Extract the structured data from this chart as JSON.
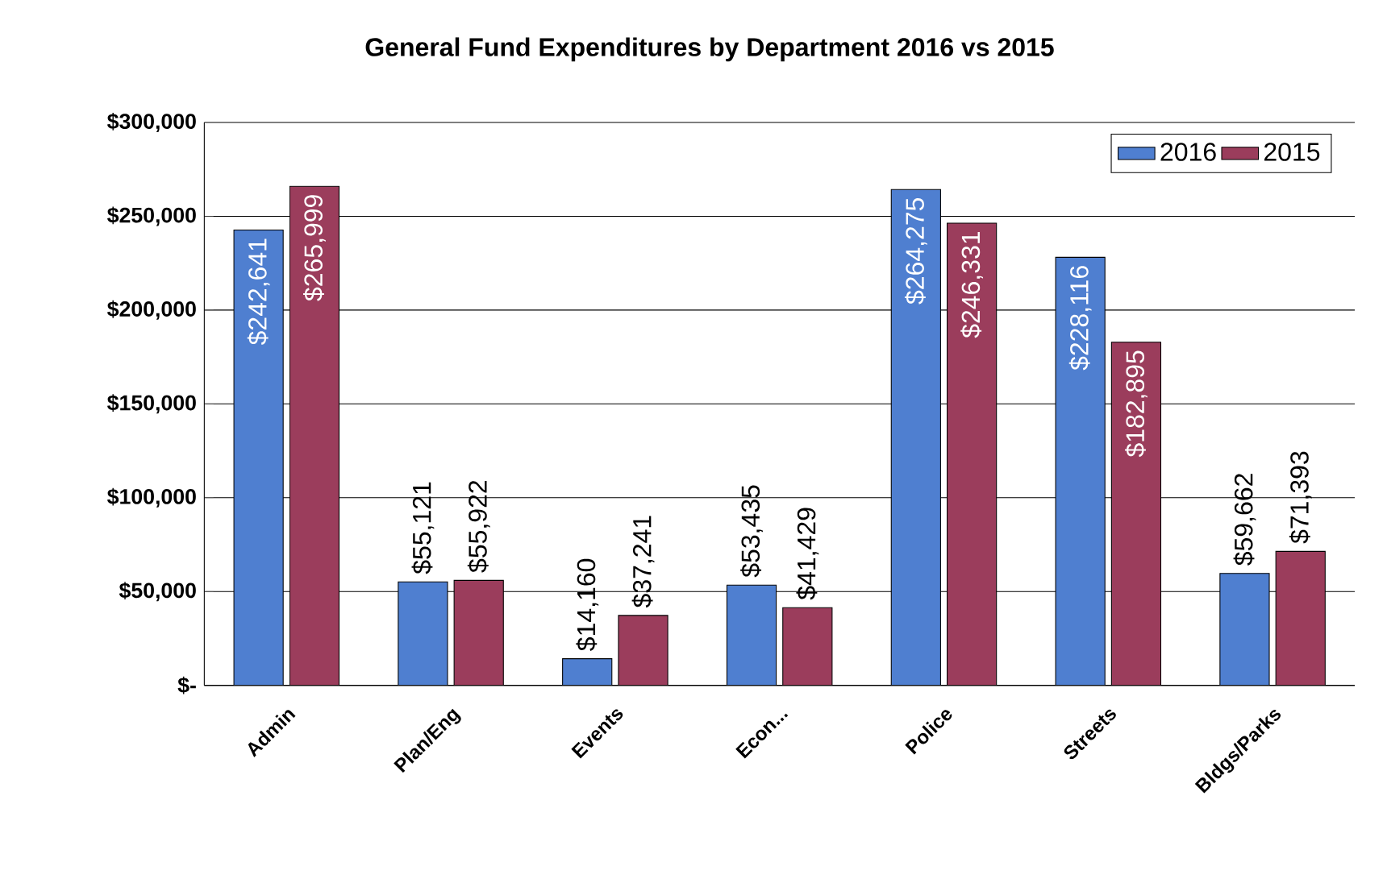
{
  "chart_data": {
    "type": "bar",
    "title": "General Fund Expenditures by Department 2016 vs 2015",
    "categories": [
      "Admin",
      "Plan/Eng",
      "Events",
      "Econ...",
      "Police",
      "Streets",
      "Bldgs/Parks"
    ],
    "series": [
      {
        "name": "2016",
        "color": "#4f7fd0",
        "values": [
          242641,
          55121,
          14160,
          53435,
          264275,
          228116,
          59662
        ],
        "value_labels": [
          "$242,641",
          "$55,121",
          "$14,160",
          "$53,435",
          "$264,275",
          "$228,116",
          "$59,662"
        ]
      },
      {
        "name": "2015",
        "color": "#9b3d5c",
        "values": [
          265999,
          55922,
          37241,
          41429,
          246331,
          182895,
          71393
        ],
        "value_labels": [
          "$265,999",
          "$55,922",
          "$37,241",
          "$41,429",
          "$246,331",
          "$182,895",
          "$71,393"
        ]
      }
    ],
    "ylim": [
      0,
      300000
    ],
    "yticks": [
      {
        "value": 0,
        "label": "$-"
      },
      {
        "value": 50000,
        "label": "$50,000"
      },
      {
        "value": 100000,
        "label": "$100,000"
      },
      {
        "value": 150000,
        "label": "$150,000"
      },
      {
        "value": 200000,
        "label": "$200,000"
      },
      {
        "value": 250000,
        "label": "$250,000"
      },
      {
        "value": 300000,
        "label": "$300,000"
      }
    ],
    "grid": "y",
    "legend": "top right"
  }
}
